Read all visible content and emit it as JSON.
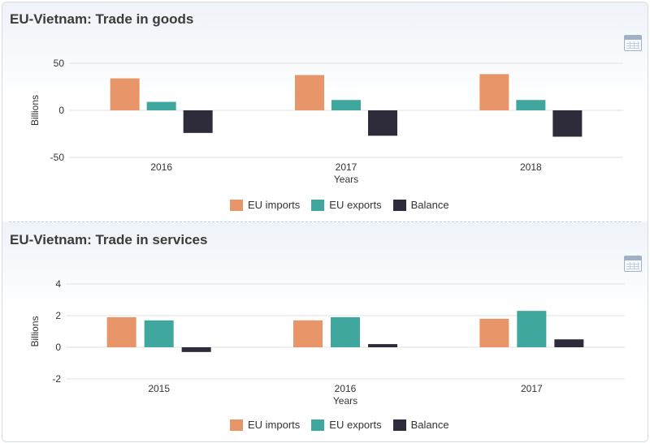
{
  "colors": {
    "imports": "#e8956a",
    "exports": "#3fa79d",
    "balance": "#2e2b3a",
    "grid": "#e2e2e2"
  },
  "panels": {
    "goods": {
      "title": "EU-Vietnam: Trade in goods",
      "table_icon": "table-icon",
      "legend": [
        "EU imports",
        "EU exports",
        "Balance"
      ]
    },
    "services": {
      "title": "EU-Vietnam: Trade in services",
      "table_icon": "table-icon",
      "legend": [
        "EU imports",
        "EU exports",
        "Balance"
      ]
    }
  },
  "chart_data": [
    {
      "type": "bar",
      "title": "EU-Vietnam: Trade in goods",
      "categories": [
        "2016",
        "2017",
        "2018"
      ],
      "series": [
        {
          "name": "EU imports",
          "values": [
            34,
            37.5,
            38.5
          ]
        },
        {
          "name": "EU exports",
          "values": [
            9,
            11,
            11
          ]
        },
        {
          "name": "Balance",
          "values": [
            -24,
            -27,
            -28
          ]
        }
      ],
      "xlabel": "Years",
      "ylabel": "Billions",
      "ylim": [
        -50,
        50
      ],
      "yticks": [
        50,
        0,
        -50
      ],
      "ytick_labels": [
        "50",
        "0",
        "-50"
      ],
      "grid": true,
      "legend": "bottom"
    },
    {
      "type": "bar",
      "title": "EU-Vietnam: Trade in services",
      "categories": [
        "2015",
        "2016",
        "2017"
      ],
      "series": [
        {
          "name": "EU imports",
          "values": [
            1.9,
            1.7,
            1.8
          ]
        },
        {
          "name": "EU exports",
          "values": [
            1.7,
            1.9,
            2.3
          ]
        },
        {
          "name": "Balance",
          "values": [
            -0.3,
            0.2,
            0.5
          ]
        }
      ],
      "xlabel": "Years",
      "ylabel": "Billions",
      "ylim": [
        -2,
        4
      ],
      "yticks": [
        4,
        2,
        0,
        -2
      ],
      "ytick_labels": [
        "4",
        "2",
        "0",
        "-2"
      ],
      "grid": true,
      "legend": "bottom"
    }
  ]
}
